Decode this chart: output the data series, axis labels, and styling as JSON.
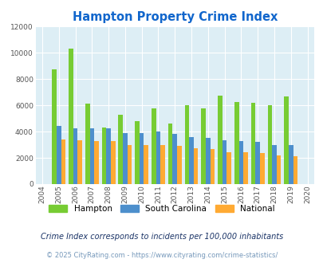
{
  "title": "Hampton Property Crime Index",
  "years": [
    2004,
    2005,
    2006,
    2007,
    2008,
    2009,
    2010,
    2011,
    2012,
    2013,
    2014,
    2015,
    2016,
    2017,
    2018,
    2019,
    2020
  ],
  "hampton": [
    null,
    8700,
    10300,
    6100,
    4300,
    5300,
    4800,
    5750,
    4600,
    6000,
    5750,
    6750,
    6250,
    6200,
    6000,
    6650,
    null
  ],
  "south_carolina": [
    null,
    4400,
    4250,
    4250,
    4250,
    3900,
    3900,
    4000,
    3800,
    3600,
    3500,
    3350,
    3300,
    3200,
    3000,
    2950,
    null
  ],
  "national": [
    null,
    3400,
    3350,
    3250,
    3250,
    3000,
    2950,
    2950,
    2900,
    2700,
    2650,
    2450,
    2450,
    2350,
    2200,
    2100,
    null
  ],
  "hampton_color": "#77cc33",
  "sc_color": "#4d8fcc",
  "national_color": "#ffaa33",
  "bg_color": "#ddeef5",
  "title_color": "#1166cc",
  "footnote1_color": "#1a3366",
  "footnote2_color": "#7799bb",
  "ylim": [
    0,
    12000
  ],
  "yticks": [
    0,
    2000,
    4000,
    6000,
    8000,
    10000,
    12000
  ],
  "legend_labels": [
    "Hampton",
    "South Carolina",
    "National"
  ],
  "footnote1": "Crime Index corresponds to incidents per 100,000 inhabitants",
  "footnote2": "© 2025 CityRating.com - https://www.cityrating.com/crime-statistics/",
  "bar_width": 0.27
}
